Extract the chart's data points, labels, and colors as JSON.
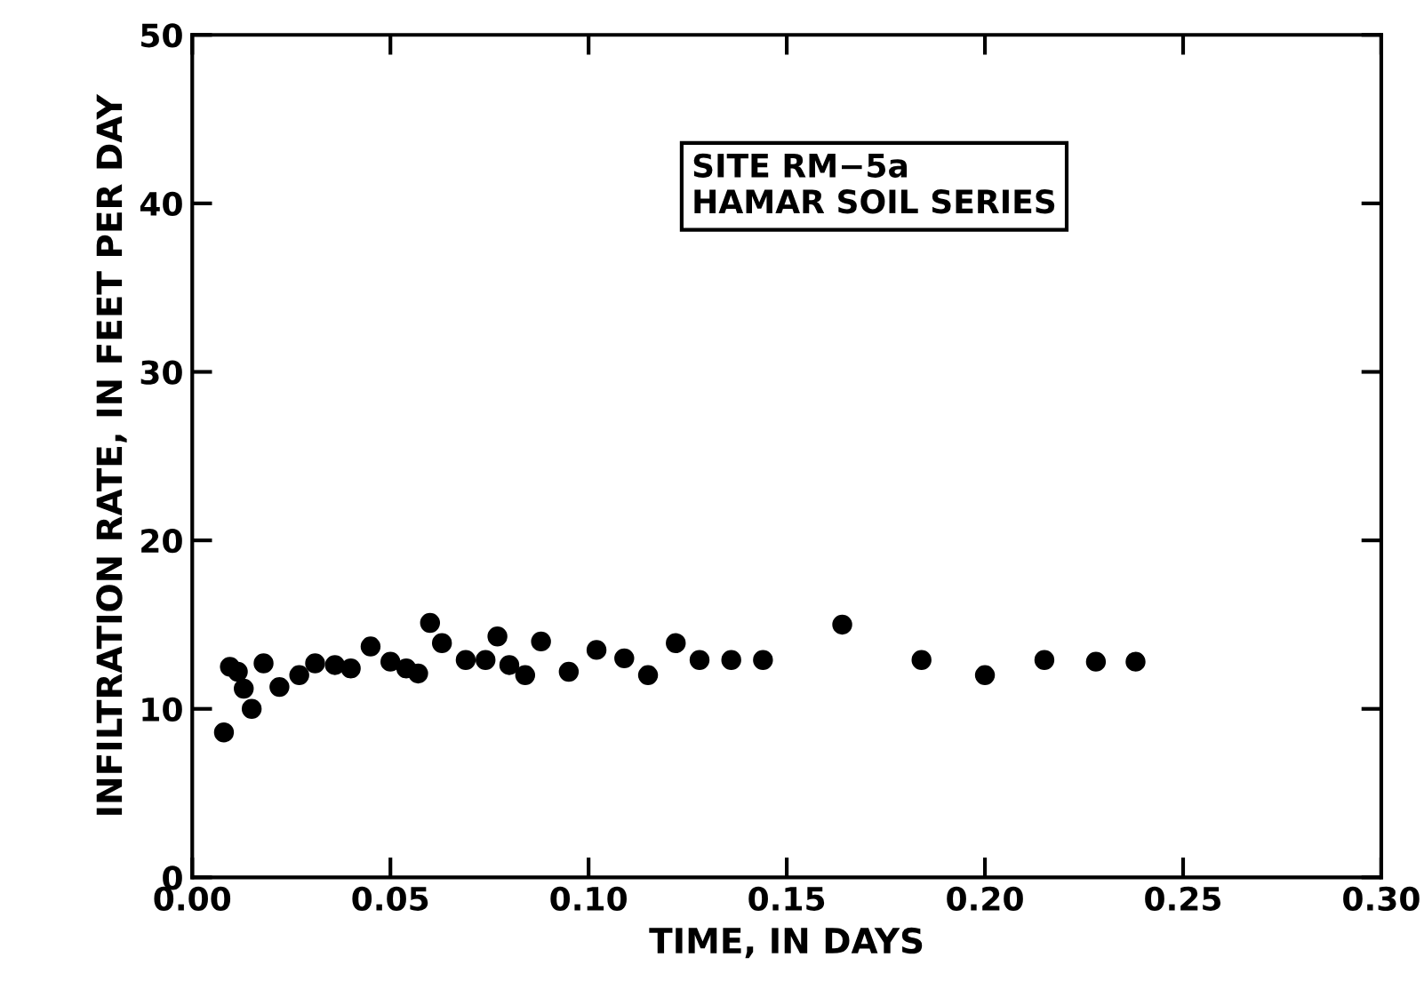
{
  "chart_data": {
    "type": "scatter",
    "xlabel": "TIME, IN DAYS",
    "ylabel": "INFILTRATION RATE, IN FEET PER DAY",
    "annotations": [
      "SITE RM−5a\nHAMAR SOIL SERIES"
    ],
    "x": [
      0.008,
      0.0095,
      0.0115,
      0.013,
      0.015,
      0.018,
      0.022,
      0.027,
      0.031,
      0.036,
      0.04,
      0.045,
      0.05,
      0.054,
      0.057,
      0.06,
      0.063,
      0.069,
      0.074,
      0.077,
      0.08,
      0.084,
      0.088,
      0.095,
      0.102,
      0.109,
      0.115,
      0.122,
      0.128,
      0.136,
      0.144,
      0.164,
      0.184,
      0.2,
      0.215,
      0.228,
      0.238
    ],
    "values": [
      8.6,
      12.5,
      12.2,
      11.2,
      10.0,
      12.7,
      11.3,
      12.0,
      12.7,
      12.6,
      12.4,
      13.7,
      12.8,
      12.4,
      12.1,
      15.1,
      13.9,
      12.9,
      12.9,
      14.3,
      12.6,
      12.0,
      14.0,
      12.2,
      13.5,
      13.0,
      12.0,
      13.9,
      12.9,
      12.9,
      12.9,
      15.0,
      12.9,
      12.0,
      12.9,
      12.8,
      12.8
    ],
    "color": "#000000",
    "marker": "circle",
    "xlim": [
      0,
      0.3
    ],
    "xticks": [
      {
        "value": 0,
        "label": "0.00"
      },
      {
        "value": 0.05,
        "label": "0.05"
      },
      {
        "value": 0.1,
        "label": "0.10"
      },
      {
        "value": 0.15,
        "label": "0.15"
      },
      {
        "value": 0.2,
        "label": "0.20"
      },
      {
        "value": 0.25,
        "label": "0.25"
      },
      {
        "value": 0.3,
        "label": "0.30"
      }
    ],
    "ylim": [
      0,
      50
    ],
    "yticks": [
      0,
      10,
      20,
      30,
      40,
      50
    ],
    "grid": false,
    "legend": false
  }
}
